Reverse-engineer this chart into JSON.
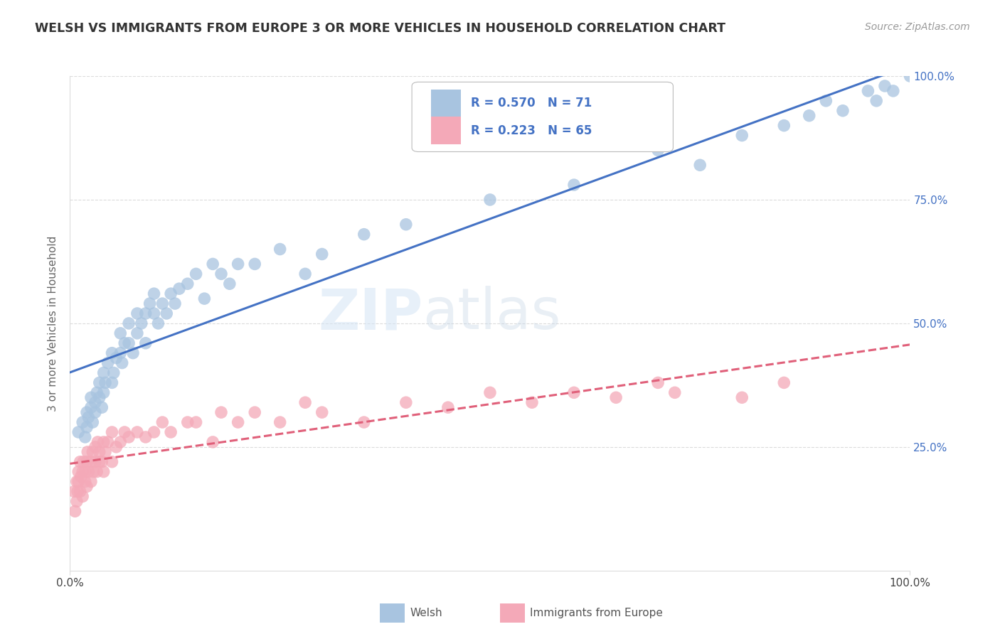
{
  "title": "WELSH VS IMMIGRANTS FROM EUROPE 3 OR MORE VEHICLES IN HOUSEHOLD CORRELATION CHART",
  "source": "Source: ZipAtlas.com",
  "ylabel": "3 or more Vehicles in Household",
  "xlim": [
    0,
    1.0
  ],
  "ylim": [
    0,
    1.0
  ],
  "R_welsh": 0.57,
  "N_welsh": 71,
  "R_immigrants": 0.223,
  "N_immigrants": 65,
  "welsh_color": "#a8c4e0",
  "immigrants_color": "#f4a9b8",
  "welsh_line_color": "#4472c4",
  "immigrants_line_color": "#e0607a",
  "legend_R_color": "#4472c4",
  "grid_color": "#cccccc",
  "background_color": "#ffffff",
  "watermark_zip": "ZIP",
  "watermark_atlas": "atlas",
  "welsh_scatter_x": [
    0.01,
    0.015,
    0.018,
    0.02,
    0.02,
    0.022,
    0.025,
    0.025,
    0.027,
    0.03,
    0.03,
    0.032,
    0.035,
    0.035,
    0.038,
    0.04,
    0.04,
    0.042,
    0.045,
    0.05,
    0.05,
    0.052,
    0.055,
    0.06,
    0.06,
    0.062,
    0.065,
    0.07,
    0.07,
    0.075,
    0.08,
    0.08,
    0.085,
    0.09,
    0.09,
    0.095,
    0.1,
    0.1,
    0.105,
    0.11,
    0.115,
    0.12,
    0.125,
    0.13,
    0.14,
    0.15,
    0.16,
    0.17,
    0.18,
    0.19,
    0.2,
    0.22,
    0.25,
    0.28,
    0.3,
    0.35,
    0.4,
    0.5,
    0.6,
    0.7,
    0.75,
    0.8,
    0.85,
    0.88,
    0.9,
    0.92,
    0.95,
    0.96,
    0.97,
    0.98,
    1.0
  ],
  "welsh_scatter_y": [
    0.28,
    0.3,
    0.27,
    0.32,
    0.29,
    0.31,
    0.33,
    0.35,
    0.3,
    0.34,
    0.32,
    0.36,
    0.35,
    0.38,
    0.33,
    0.36,
    0.4,
    0.38,
    0.42,
    0.38,
    0.44,
    0.4,
    0.43,
    0.44,
    0.48,
    0.42,
    0.46,
    0.46,
    0.5,
    0.44,
    0.48,
    0.52,
    0.5,
    0.52,
    0.46,
    0.54,
    0.52,
    0.56,
    0.5,
    0.54,
    0.52,
    0.56,
    0.54,
    0.57,
    0.58,
    0.6,
    0.55,
    0.62,
    0.6,
    0.58,
    0.62,
    0.62,
    0.65,
    0.6,
    0.64,
    0.68,
    0.7,
    0.75,
    0.78,
    0.85,
    0.82,
    0.88,
    0.9,
    0.92,
    0.95,
    0.93,
    0.97,
    0.95,
    0.98,
    0.97,
    1.0
  ],
  "immigrants_scatter_x": [
    0.005,
    0.006,
    0.008,
    0.008,
    0.009,
    0.01,
    0.01,
    0.012,
    0.012,
    0.013,
    0.015,
    0.015,
    0.016,
    0.018,
    0.018,
    0.02,
    0.02,
    0.021,
    0.022,
    0.025,
    0.025,
    0.027,
    0.028,
    0.03,
    0.03,
    0.032,
    0.033,
    0.035,
    0.035,
    0.038,
    0.04,
    0.04,
    0.042,
    0.045,
    0.05,
    0.05,
    0.055,
    0.06,
    0.065,
    0.07,
    0.08,
    0.09,
    0.1,
    0.11,
    0.12,
    0.14,
    0.15,
    0.17,
    0.18,
    0.2,
    0.22,
    0.25,
    0.28,
    0.3,
    0.35,
    0.4,
    0.45,
    0.5,
    0.55,
    0.6,
    0.65,
    0.7,
    0.72,
    0.8,
    0.85
  ],
  "immigrants_scatter_y": [
    0.16,
    0.12,
    0.18,
    0.14,
    0.16,
    0.2,
    0.18,
    0.16,
    0.22,
    0.19,
    0.2,
    0.15,
    0.22,
    0.2,
    0.18,
    0.22,
    0.17,
    0.24,
    0.2,
    0.22,
    0.18,
    0.24,
    0.2,
    0.22,
    0.25,
    0.2,
    0.26,
    0.22,
    0.24,
    0.22,
    0.26,
    0.2,
    0.24,
    0.26,
    0.28,
    0.22,
    0.25,
    0.26,
    0.28,
    0.27,
    0.28,
    0.27,
    0.28,
    0.3,
    0.28,
    0.3,
    0.3,
    0.26,
    0.32,
    0.3,
    0.32,
    0.3,
    0.34,
    0.32,
    0.3,
    0.34,
    0.33,
    0.36,
    0.34,
    0.36,
    0.35,
    0.38,
    0.36,
    0.35,
    0.38
  ]
}
